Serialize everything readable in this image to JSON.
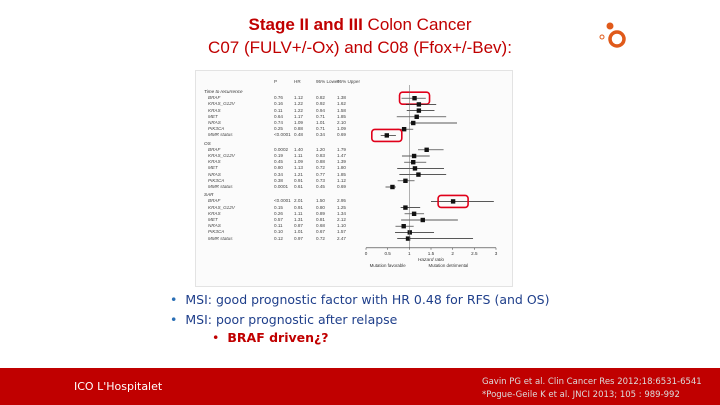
{
  "slide": {
    "title_line1_part1": "Stage II and III",
    "title_line1_part2": " Colon Cancer",
    "title_line2": "C07 (FULV+/-Ox) and C08 (Ffox+/-Bev):"
  },
  "figure": {
    "header": {
      "p": "P",
      "hr": "HR",
      "lower": "95% Lower",
      "upper": "95% Upper"
    },
    "sections": [
      {
        "label": "Time to recurrence",
        "rows": [
          {
            "gene": "BRAF",
            "p": "0.76",
            "hr": "1.12",
            "lower": "0.82",
            "upper": "1.38",
            "highlight": true
          },
          {
            "gene": "KRAS_G12V",
            "p": "0.16",
            "hr": "1.22",
            "lower": "0.92",
            "upper": "1.62"
          },
          {
            "gene": "KRAS",
            "p": "0.11",
            "hr": "1.22",
            "lower": "0.94",
            "upper": "1.58"
          },
          {
            "gene": "MET",
            "p": "0.64",
            "hr": "1.17",
            "lower": "0.71",
            "upper": "1.85"
          },
          {
            "gene": "NRAS",
            "p": "0.74",
            "hr": "1.09",
            "lower": "1.01",
            "upper": "2.10"
          },
          {
            "gene": "PIK3CA",
            "p": "0.25",
            "hr": "0.88",
            "lower": "0.71",
            "upper": "1.09"
          },
          {
            "gene": "MMR status",
            "p": "<0.0001",
            "hr": "0.48",
            "lower": "0.34",
            "upper": "0.69",
            "highlight": true
          }
        ]
      },
      {
        "label": "OS",
        "rows": [
          {
            "gene": "BRAF",
            "p": "0.0002",
            "hr": "1.40",
            "lower": "1.20",
            "upper": "1.79"
          },
          {
            "gene": "KRAS_G12V",
            "p": "0.19",
            "hr": "1.11",
            "lower": "0.83",
            "upper": "1.47"
          },
          {
            "gene": "KRAS",
            "p": "0.45",
            "hr": "1.09",
            "lower": "0.88",
            "upper": "1.39"
          },
          {
            "gene": "MET",
            "p": "0.80",
            "hr": "1.13",
            "lower": "0.72",
            "upper": "1.80"
          },
          {
            "gene": "NRAS",
            "p": "0.34",
            "hr": "1.21",
            "lower": "0.77",
            "upper": "1.85"
          },
          {
            "gene": "PIK3CA",
            "p": "0.38",
            "hr": "0.91",
            "lower": "0.73",
            "upper": "1.12"
          },
          {
            "gene": "MMR status",
            "p": "0.0001",
            "hr": "0.61",
            "lower": "0.45",
            "upper": "0.69"
          }
        ]
      },
      {
        "label": "SAR",
        "rows": [
          {
            "gene": "BRAF",
            "p": "<0.0001",
            "hr": "2.01",
            "lower": "1.50",
            "upper": "2.95",
            "highlight": true
          },
          {
            "gene": "KRAS_G12V",
            "p": "0.15",
            "hr": "0.91",
            "lower": "0.80",
            "upper": "1.25"
          },
          {
            "gene": "KRAS",
            "p": "0.26",
            "hr": "1.11",
            "lower": "0.89",
            "upper": "1.34"
          },
          {
            "gene": "MET",
            "p": "0.57",
            "hr": "1.31",
            "lower": "0.81",
            "upper": "2.12"
          },
          {
            "gene": "NRAS",
            "p": "0.11",
            "hr": "0.87",
            "lower": "0.68",
            "upper": "1.10"
          },
          {
            "gene": "PIK3CA",
            "p": "0.10",
            "hr": "1.01",
            "lower": "0.67",
            "upper": "1.57"
          },
          {
            "gene": "MMR status",
            "p": "0.12",
            "hr": "0.97",
            "lower": "0.72",
            "upper": "2.47"
          }
        ]
      }
    ],
    "axis": {
      "ticks": [
        "0",
        "0.5",
        "1",
        "1.5",
        "2",
        "2.5",
        "3"
      ],
      "label": "Hazard ratio"
    },
    "favor_left": "Mutation favorable",
    "favor_right": "Mutation detrimental"
  },
  "bullets": [
    {
      "text": "MSI:  good prognostic factor with HR 0.48 for RFS (and OS)"
    },
    {
      "text": "MSI: poor prognostic after relapse"
    }
  ],
  "sub_bullet": {
    "text": "BRAF driven¿?"
  },
  "footer": {
    "institution": "ICO L'Hospitalet",
    "ref1": "Gavin PG et al. Clin Cancer Res 2012;18:6531-6541",
    "ref2": "*Pogue-Geile K et al. JNCI 2013; 105 : 989-992"
  },
  "colors": {
    "accent": "#c00000",
    "bullet_text": "#1f3f8b",
    "bullet_dot": "#2b6fb5",
    "highlight_box": "#e0001a"
  },
  "icons": {
    "logo": "ico-logo-icon"
  }
}
